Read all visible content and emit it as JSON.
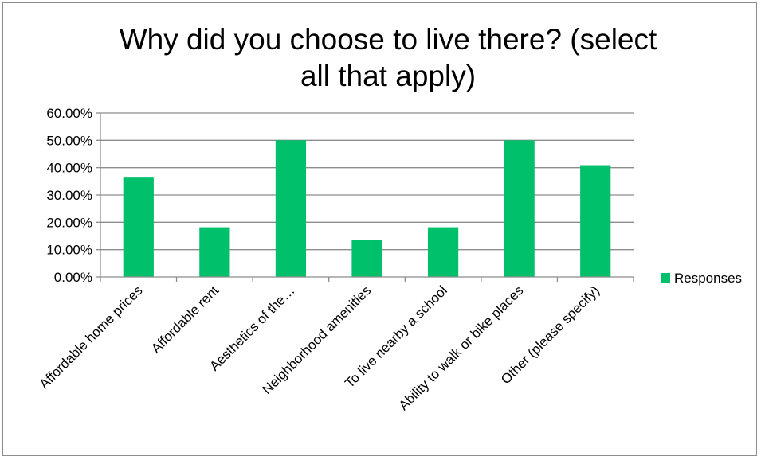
{
  "chart_data": {
    "type": "bar",
    "title_lines": [
      "Why did you choose to live there? (select",
      "all that apply)"
    ],
    "categories": [
      "Affordable home prices",
      "Affordable rent",
      "Aesthetics of the…",
      "Neighborhood amenities",
      "To live nearby a school",
      "Ability to walk or bike places",
      "Other (please specify)"
    ],
    "series": [
      {
        "name": "Responses",
        "color": "#00c06b",
        "values": [
          36.36,
          18.18,
          50.0,
          13.64,
          18.18,
          50.0,
          40.91
        ]
      }
    ],
    "ylim": [
      0,
      60
    ],
    "yticks": [
      0,
      10,
      20,
      30,
      40,
      50,
      60
    ],
    "ytick_labels": [
      "0.00%",
      "10.00%",
      "20.00%",
      "30.00%",
      "40.00%",
      "50.00%",
      "60.00%"
    ],
    "grid": true,
    "legend_position": "right"
  }
}
